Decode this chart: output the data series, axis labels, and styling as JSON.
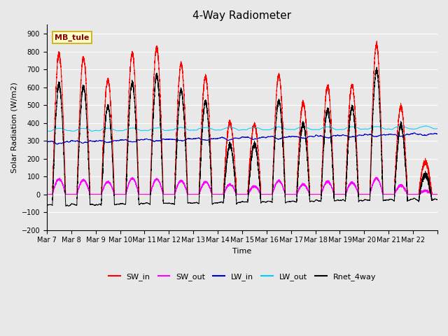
{
  "title": "4-Way Radiometer",
  "xlabel": "Time",
  "ylabel": "Solar Radiation (W/m2)",
  "ylim": [
    -200,
    950
  ],
  "yticks": [
    -200,
    -100,
    0,
    100,
    200,
    300,
    400,
    500,
    600,
    700,
    800,
    900
  ],
  "x_labels": [
    "Mar 7",
    "Mar 8",
    "Mar 9",
    "Mar 10",
    "Mar 11",
    "Mar 12",
    "Mar 13",
    "Mar 14",
    "Mar 15",
    "Mar 16",
    "Mar 17",
    "Mar 18",
    "Mar 19",
    "Mar 20",
    "Mar 21",
    "Mar 22"
  ],
  "station_label": "MB_tule",
  "colors": {
    "SW_in": "#ff0000",
    "SW_out": "#ff00ff",
    "LW_in": "#0000cc",
    "LW_out": "#00ccff",
    "Rnet_4way": "#000000"
  },
  "background_color": "#e8e8e8",
  "plot_background": "#e8e8e8",
  "grid_color": "#ffffff",
  "n_days": 16,
  "dt": 0.05,
  "SW_in_peaks": [
    785,
    765,
    640,
    790,
    820,
    730,
    660,
    400,
    390,
    665,
    510,
    605,
    610,
    840,
    490,
    180
  ],
  "SW_out_peaks": [
    85,
    80,
    70,
    90,
    85,
    75,
    70,
    55,
    45,
    75,
    55,
    70,
    65,
    90,
    50,
    20
  ],
  "LW_in_base": 300,
  "LW_out_base": 360
}
